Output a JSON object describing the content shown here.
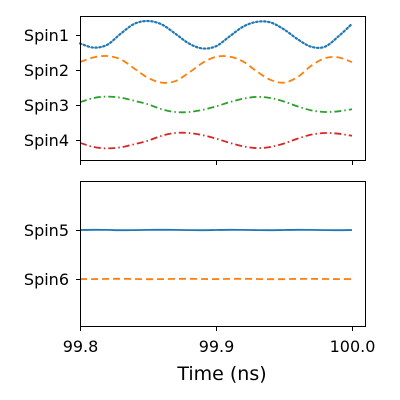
{
  "chart_data": [
    {
      "type": "line",
      "panel": "top",
      "xlim": [
        99.8,
        100.0
      ],
      "ytick_labels": [
        "Spin1",
        "Spin2",
        "Spin3",
        "Spin4"
      ],
      "x": [
        99.8,
        99.81,
        99.82,
        99.83,
        99.84,
        99.85,
        99.86,
        99.87,
        99.88,
        99.89,
        99.9,
        99.91,
        99.92,
        99.93,
        99.94,
        99.95,
        99.96,
        99.97,
        99.98,
        99.99,
        100.0
      ],
      "series": [
        {
          "name": "Spin1",
          "color": "#1f77b4",
          "style": "dotted",
          "values": [
            0.2,
            0.05,
            0.15,
            0.55,
            0.9,
            1.0,
            0.88,
            0.55,
            0.2,
            0.02,
            0.1,
            0.45,
            0.8,
            0.97,
            0.95,
            0.7,
            0.35,
            0.08,
            0.08,
            0.45,
            0.9
          ]
        },
        {
          "name": "Spin2",
          "color": "#ff7f0e",
          "style": "dashed",
          "values": [
            0.78,
            0.95,
            1.0,
            0.88,
            0.55,
            0.22,
            0.05,
            0.1,
            0.4,
            0.75,
            0.97,
            0.98,
            0.8,
            0.45,
            0.15,
            0.05,
            0.25,
            0.65,
            0.92,
            0.95,
            0.78
          ]
        },
        {
          "name": "Spin3",
          "color": "#2ca02c",
          "style": "dashdot",
          "values": [
            0.2,
            0.5,
            0.6,
            0.52,
            0.3,
            0.05,
            -0.3,
            -0.5,
            -0.5,
            -0.35,
            -0.1,
            0.2,
            0.45,
            0.58,
            0.5,
            0.25,
            -0.1,
            -0.38,
            -0.5,
            -0.45,
            -0.3
          ]
        },
        {
          "name": "Spin4",
          "color": "#d62728",
          "style": "dashdot",
          "values": [
            -0.2,
            -0.5,
            -0.6,
            -0.52,
            -0.3,
            -0.05,
            0.3,
            0.5,
            0.5,
            0.35,
            0.1,
            -0.2,
            -0.45,
            -0.58,
            -0.5,
            -0.25,
            0.1,
            0.38,
            0.5,
            0.45,
            0.3
          ]
        }
      ]
    },
    {
      "type": "line",
      "panel": "bottom",
      "xlim": [
        99.8,
        100.0
      ],
      "ytick_labels": [
        "Spin5",
        "Spin6"
      ],
      "xtick_labels": [
        "99.8",
        "99.9",
        "100.0"
      ],
      "xlabel": "Time (ns)",
      "x": [
        99.8,
        99.81,
        99.82,
        99.83,
        99.84,
        99.85,
        99.86,
        99.87,
        99.88,
        99.89,
        99.9,
        99.91,
        99.92,
        99.93,
        99.94,
        99.95,
        99.96,
        99.97,
        99.98,
        99.99,
        100.0
      ],
      "series": [
        {
          "name": "Spin5",
          "color": "#1f77b4",
          "style": "solid",
          "values": [
            0.0,
            0.02,
            0.01,
            -0.02,
            -0.01,
            0.01,
            0.02,
            0.01,
            -0.01,
            -0.02,
            0.0,
            0.02,
            0.01,
            -0.01,
            -0.02,
            0.0,
            0.02,
            0.01,
            -0.01,
            -0.02,
            0.0
          ]
        },
        {
          "name": "Spin6",
          "color": "#ff7f0e",
          "style": "dashed",
          "values": [
            0.0,
            -0.01,
            0.01,
            0.02,
            0.0,
            -0.02,
            -0.01,
            0.01,
            0.02,
            0.0,
            -0.01,
            0.01,
            0.02,
            0.0,
            -0.02,
            -0.01,
            0.01,
            0.01,
            0.0,
            -0.01,
            0.0
          ]
        }
      ]
    }
  ]
}
